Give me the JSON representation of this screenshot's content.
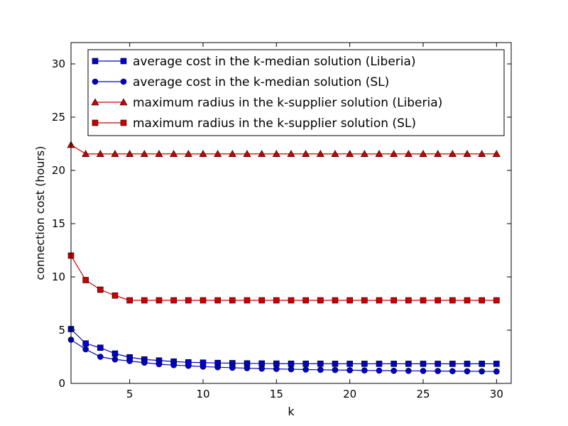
{
  "chart_data": {
    "type": "line",
    "title": "",
    "xlabel": "k",
    "ylabel": "connection cost (hours)",
    "xlim": [
      1,
      31
    ],
    "ylim": [
      0,
      32
    ],
    "xticks": [
      5,
      10,
      15,
      20,
      25,
      30
    ],
    "yticks": [
      0,
      5,
      10,
      15,
      20,
      25,
      30
    ],
    "grid": false,
    "legend_position": "top-right",
    "x": [
      1,
      2,
      3,
      4,
      5,
      6,
      7,
      8,
      9,
      10,
      11,
      12,
      13,
      14,
      15,
      16,
      17,
      18,
      19,
      20,
      21,
      22,
      23,
      24,
      25,
      26,
      27,
      28,
      29,
      30
    ],
    "series": [
      {
        "name": "average cost in the k-median solution (Liberia)",
        "color": "#0000cc",
        "marker": "square",
        "values": [
          5.1,
          3.75,
          3.35,
          2.8,
          2.45,
          2.25,
          2.15,
          2.05,
          1.98,
          1.95,
          1.92,
          1.9,
          1.88,
          1.87,
          1.86,
          1.85,
          1.85,
          1.85,
          1.84,
          1.84,
          1.84,
          1.84,
          1.84,
          1.84,
          1.84,
          1.84,
          1.84,
          1.84,
          1.84,
          1.84
        ]
      },
      {
        "name": "average cost in the k-median solution (SL)",
        "color": "#0000cc",
        "marker": "circle",
        "values": [
          4.1,
          3.2,
          2.5,
          2.25,
          2.1,
          1.95,
          1.8,
          1.72,
          1.65,
          1.58,
          1.52,
          1.47,
          1.43,
          1.39,
          1.36,
          1.33,
          1.3,
          1.28,
          1.26,
          1.24,
          1.22,
          1.2,
          1.19,
          1.18,
          1.17,
          1.16,
          1.15,
          1.14,
          1.13,
          1.12
        ]
      },
      {
        "name": "maximum radius in the k-supplier solution (Liberia)",
        "color": "#cc0000",
        "marker": "triangle",
        "values": [
          22.4,
          21.55,
          21.55,
          21.55,
          21.55,
          21.55,
          21.55,
          21.55,
          21.55,
          21.55,
          21.55,
          21.55,
          21.55,
          21.55,
          21.55,
          21.55,
          21.55,
          21.55,
          21.55,
          21.55,
          21.55,
          21.55,
          21.55,
          21.55,
          21.55,
          21.55,
          21.55,
          21.55,
          21.55,
          21.55
        ]
      },
      {
        "name": "maximum radius in the k-supplier solution (SL)",
        "color": "#cc0000",
        "marker": "square",
        "values": [
          12.0,
          9.7,
          8.8,
          8.25,
          7.8,
          7.8,
          7.8,
          7.8,
          7.8,
          7.8,
          7.8,
          7.8,
          7.8,
          7.8,
          7.8,
          7.8,
          7.8,
          7.8,
          7.8,
          7.8,
          7.8,
          7.8,
          7.8,
          7.8,
          7.8,
          7.8,
          7.8,
          7.8,
          7.8,
          7.8
        ]
      }
    ]
  }
}
